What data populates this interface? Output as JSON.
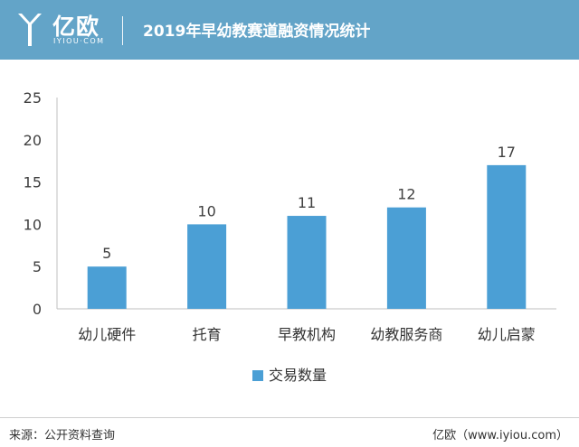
{
  "header": {
    "logo_cn": "亿欧",
    "logo_en": "IYIOU·COM",
    "title": "2019年早幼教赛道融资情况统计"
  },
  "footer": {
    "source": "来源：公开资料查询",
    "brand": "亿欧（www.iyiou.com）"
  },
  "colors": {
    "header_bg": "#63a4c8",
    "bar": "#4b9fd5"
  },
  "chart_data": {
    "type": "bar",
    "title": "2019年早幼教赛道融资情况统计",
    "categories": [
      "幼儿硬件",
      "托育",
      "早教机构",
      "幼教服务商",
      "幼儿启蒙"
    ],
    "series": [
      {
        "name": "交易数量",
        "values": [
          5,
          10,
          11,
          12,
          17
        ]
      }
    ],
    "ylim": [
      0,
      25
    ],
    "yticks": [
      0,
      5,
      10,
      15,
      20,
      25
    ],
    "data_labels": true,
    "grid": false,
    "legend": "bottom-center"
  }
}
